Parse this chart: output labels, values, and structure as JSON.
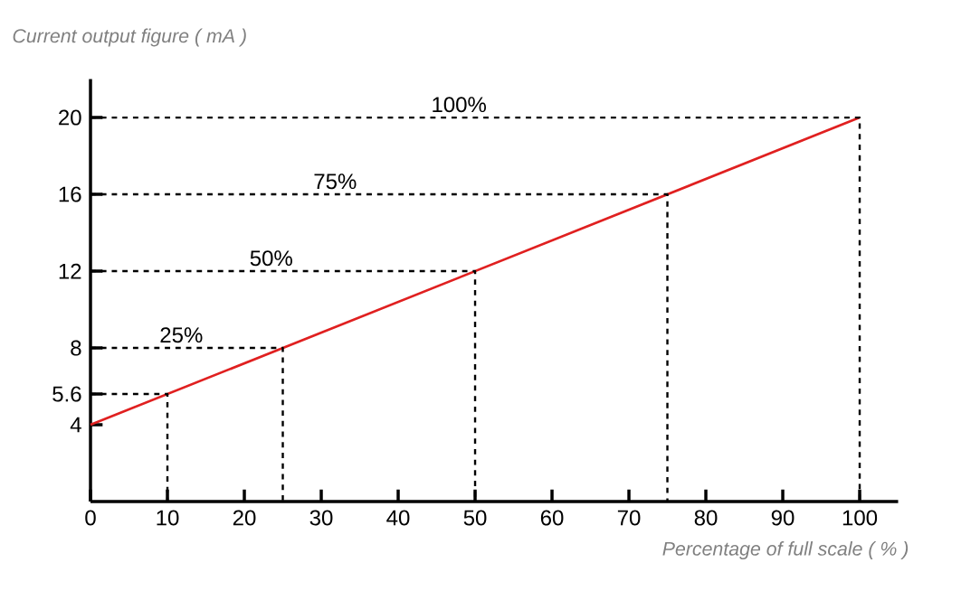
{
  "chart_data": {
    "type": "line",
    "xlabel": "Percentage of full scale ( % )",
    "ylabel": "Current output figure ( mA )",
    "xlim": [
      0,
      105
    ],
    "ylim": [
      0,
      22
    ],
    "xticks": [
      0,
      10,
      20,
      30,
      40,
      50,
      60,
      70,
      80,
      90,
      100
    ],
    "yticks": [
      4,
      5.6,
      8,
      12,
      16,
      20
    ],
    "series": [
      {
        "x": [
          0,
          100
        ],
        "values": [
          4,
          20
        ],
        "color": "#e02020",
        "line_style": "solid"
      },
      {
        "x": [
          0,
          10,
          10
        ],
        "values": [
          5.6,
          5.6,
          0
        ],
        "color": "#000000",
        "line_style": "dashed"
      },
      {
        "x": [
          0,
          25,
          25
        ],
        "values": [
          8,
          8,
          0
        ],
        "color": "#000000",
        "line_style": "dashed"
      },
      {
        "x": [
          0,
          50,
          50
        ],
        "values": [
          12,
          12,
          0
        ],
        "color": "#000000",
        "line_style": "dashed"
      },
      {
        "x": [
          0,
          75,
          75
        ],
        "values": [
          16,
          16,
          0
        ],
        "color": "#000000",
        "line_style": "dashed"
      },
      {
        "x": [
          0,
          100,
          100
        ],
        "values": [
          20,
          20,
          0
        ],
        "color": "#000000",
        "line_style": "dashed"
      }
    ],
    "annotations": [
      {
        "text": "25%",
        "x": 11.8,
        "y": 8
      },
      {
        "text": "50%",
        "x": 23.5,
        "y": 12
      },
      {
        "text": "75%",
        "x": 31.8,
        "y": 16
      },
      {
        "text": "100%",
        "x": 47.9,
        "y": 20
      }
    ]
  }
}
